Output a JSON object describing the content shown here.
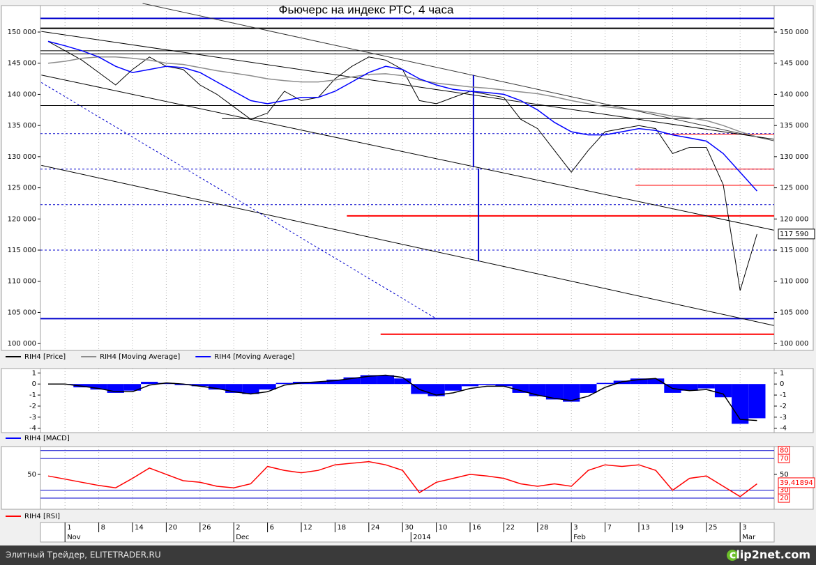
{
  "chart_data": [
    {
      "type": "line",
      "title": "Фьючерс на индекс РТС, 4 часа",
      "series": [
        {
          "name": "RIH4 [Price]",
          "color": "#000000",
          "values": [
            148500,
            147000,
            145500,
            143500,
            141500,
            144000,
            146000,
            144500,
            144000,
            141500,
            140000,
            138000,
            136000,
            137000,
            140500,
            139000,
            139500,
            142500,
            144500,
            146000,
            145500,
            144000,
            139000,
            138500,
            139500,
            140500,
            140000,
            139500,
            136000,
            134500,
            131000,
            127500,
            131000,
            134000,
            134500,
            135000,
            134500,
            130500,
            131500,
            131500,
            125500,
            108500,
            117590,
            null
          ]
        },
        {
          "name": "RIH4 [Moving Average]",
          "color": "#8c8c8c",
          "values": [
            145000,
            145300,
            145800,
            146000,
            146000,
            145800,
            145500,
            145000,
            144800,
            144300,
            143800,
            143400,
            143000,
            142500,
            142200,
            142000,
            142000,
            142300,
            142800,
            143200,
            143300,
            143000,
            142300,
            141800,
            141500,
            141200,
            141000,
            140700,
            140400,
            140100,
            139600,
            139000,
            138500,
            138000,
            137700,
            137400,
            137000,
            136500,
            136200,
            135800,
            135000,
            134000,
            133200,
            null
          ]
        },
        {
          "name": "RIH4 [Moving Average]",
          "color": "#0000ff",
          "values": [
            148500,
            147800,
            147000,
            146000,
            144500,
            143500,
            144000,
            144500,
            144300,
            143500,
            142000,
            140500,
            139000,
            138500,
            139000,
            139500,
            139500,
            140500,
            142000,
            143500,
            144500,
            144000,
            142500,
            141500,
            140800,
            140500,
            140300,
            140000,
            139000,
            137500,
            135500,
            134000,
            133500,
            133500,
            134000,
            134500,
            134200,
            133500,
            133000,
            132500,
            130500,
            127500,
            124500,
            null
          ]
        }
      ],
      "ylim": [
        98900,
        154250
      ],
      "yticks": [
        {
          "value": 100000,
          "label": "100 000"
        },
        {
          "value": 105000,
          "label": "105 000"
        },
        {
          "value": 110000,
          "label": "110 000"
        },
        {
          "value": 115000,
          "label": "115 000"
        },
        {
          "value": 120000,
          "label": "120 000"
        },
        {
          "value": 125000,
          "label": "125 000"
        },
        {
          "value": 130000,
          "label": "130 000"
        },
        {
          "value": 135000,
          "label": "135 000"
        },
        {
          "value": 140000,
          "label": "140 000"
        },
        {
          "value": 145000,
          "label": "145 000"
        },
        {
          "value": 150000,
          "label": "150 000"
        }
      ],
      "hlines": [
        {
          "value": 152200,
          "color": "#0000cc",
          "style": "thick"
        },
        {
          "value": 150600,
          "color": "#000000",
          "style": "thick"
        },
        {
          "value": 147000,
          "color": "#000000",
          "style": "solid"
        },
        {
          "value": 146500,
          "color": "#000000",
          "style": "solid"
        },
        {
          "value": 138200,
          "color": "#000000",
          "style": "solid"
        },
        {
          "value": 136100,
          "color": "#000000",
          "style": "solid",
          "from": 10.3
        },
        {
          "value": 133700,
          "color": "#0000cc",
          "style": "dashed"
        },
        {
          "value": 133600,
          "color": "#ff0000",
          "style": "solid",
          "from": 36.6
        },
        {
          "value": 128000,
          "color": "#0000cc",
          "style": "dashed"
        },
        {
          "value": 128000,
          "color": "#ff0000",
          "style": "solid",
          "from": 34.8
        },
        {
          "value": 125400,
          "color": "#ff0000",
          "style": "solid",
          "from": 34.8
        },
        {
          "value": 122300,
          "color": "#0000cc",
          "style": "dashed"
        },
        {
          "value": 120500,
          "color": "#ff0000",
          "style": "thick",
          "from": 17.7
        },
        {
          "value": 115000,
          "color": "#0000cc",
          "style": "dashed"
        },
        {
          "value": 104000,
          "color": "#0000cc",
          "style": "thick"
        },
        {
          "value": 101500,
          "color": "#ff0000",
          "style": "thick",
          "from": 19.7
        }
      ],
      "trendlines": [
        {
          "x": [
            5.6,
            43
          ],
          "values": [
            154600,
            132550
          ],
          "color": "#333333",
          "style": "solid"
        },
        {
          "x": [
            -0.4,
            43
          ],
          "values": [
            150100,
            132800
          ],
          "color": "#000000",
          "style": "solid"
        },
        {
          "x": [
            -0.4,
            43
          ],
          "values": [
            143100,
            118200
          ],
          "color": "#000000",
          "style": "solid"
        },
        {
          "x": [
            -0.4,
            43
          ],
          "values": [
            128600,
            102900
          ],
          "color": "#000000",
          "style": "solid"
        },
        {
          "x": [
            -0.4,
            23
          ],
          "values": [
            141900,
            104000
          ],
          "color": "#0000cc",
          "style": "dashed"
        },
        {
          "x": [
            25.2,
            25.2
          ],
          "values": [
            143100,
            128300
          ],
          "color": "#0000cc",
          "style": "thick"
        },
        {
          "x": [
            25.5,
            25.5
          ],
          "values": [
            128100,
            113200
          ],
          "color": "#0000cc",
          "style": "thick"
        }
      ],
      "last_value": {
        "value": 117590,
        "label": "117 590"
      }
    },
    {
      "type": "bar",
      "series": [
        {
          "name": "RIH4 [MACD]",
          "color": "#0000ff",
          "values": [
            0,
            -0.05,
            -0.3,
            -0.5,
            -0.8,
            -0.6,
            0.2,
            0.1,
            -0.1,
            -0.2,
            -0.5,
            -0.8,
            -0.9,
            -0.5,
            0.1,
            0.2,
            0.2,
            0.4,
            0.6,
            0.8,
            0.8,
            0.5,
            -0.9,
            -1.1,
            -0.6,
            -0.2,
            -0.1,
            -0.2,
            -0.8,
            -1.1,
            -1.4,
            -1.6,
            -0.8,
            0.1,
            0.3,
            0.5,
            0.5,
            -0.8,
            -0.6,
            -0.4,
            -1.2,
            -3.6,
            -3.1,
            null
          ]
        },
        {
          "color": "#000000",
          "values": [
            0,
            0,
            -0.2,
            -0.4,
            -0.7,
            -0.7,
            -0.1,
            0.1,
            0,
            -0.2,
            -0.4,
            -0.7,
            -0.9,
            -0.7,
            -0.1,
            0.1,
            0.2,
            0.3,
            0.5,
            0.7,
            0.8,
            0.6,
            -0.5,
            -1.0,
            -0.8,
            -0.4,
            -0.2,
            -0.2,
            -0.6,
            -1.0,
            -1.3,
            -1.5,
            -1.1,
            -0.3,
            0.2,
            0.4,
            0.5,
            -0.4,
            -0.6,
            -0.5,
            -0.9,
            -3.2,
            -3.3,
            null
          ]
        }
      ],
      "ylim": [
        -4.4,
        1.4
      ],
      "yticks": [
        -4,
        -3,
        -2,
        -1,
        0,
        1
      ]
    },
    {
      "type": "line",
      "categories": [
        null,
        "1",
        null,
        "8",
        null,
        "14",
        null,
        "20",
        null,
        "26",
        null,
        "2",
        null,
        "6",
        null,
        "12",
        null,
        "18",
        null,
        "24",
        null,
        "30",
        null,
        "10",
        null,
        "16",
        null,
        "22",
        null,
        "28",
        null,
        "3",
        null,
        "7",
        null,
        "13",
        null,
        "19",
        null,
        "25",
        null,
        "3",
        null,
        null
      ],
      "period_labels": [
        "Nov",
        "Dec",
        "2014",
        "Feb",
        "Mar"
      ],
      "series": [
        {
          "name": "RIH4 [RSI]",
          "color": "#ff0000",
          "values": [
            48,
            44,
            40,
            36,
            33,
            45,
            58,
            50,
            42,
            40,
            35,
            33,
            38,
            60,
            55,
            52,
            55,
            62,
            64,
            66,
            62,
            55,
            27,
            40,
            45,
            50,
            48,
            45,
            38,
            35,
            38,
            35,
            55,
            62,
            60,
            62,
            55,
            30,
            45,
            48,
            35,
            22,
            38,
            null
          ]
        }
      ],
      "ylim": [
        6,
        85
      ],
      "yticks": [
        50
      ],
      "levels": [
        80,
        70,
        30,
        20
      ],
      "last_value": {
        "value": 39.41894,
        "label": "39,41894"
      }
    }
  ],
  "footer": {
    "source": "Элитный Трейдер, ELITETRADER.RU",
    "logo": "clip2net.com"
  }
}
